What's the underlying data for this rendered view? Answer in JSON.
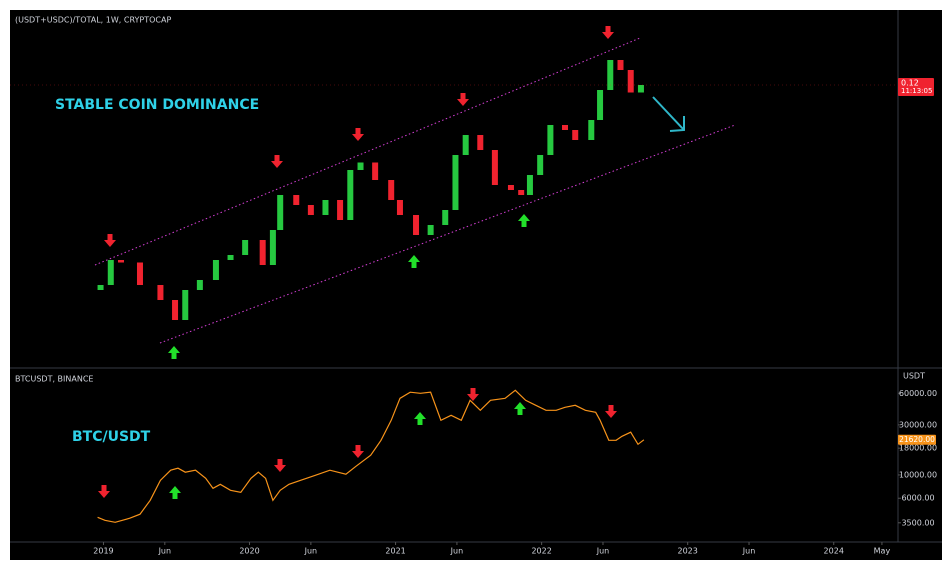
{
  "chart_data": [
    {
      "type": "candlestick",
      "title": "(USDT+USDC)/TOTAL, 1W, CRYPTOCAP",
      "annotation": "STABLE COIN DOMINANCE",
      "x": [
        2018.98,
        2019.05,
        2019.12,
        2019.25,
        2019.39,
        2019.49,
        2019.56,
        2019.66,
        2019.77,
        2019.87,
        2019.97,
        2020.09,
        2020.16,
        2020.21,
        2020.32,
        2020.42,
        2020.52,
        2020.62,
        2020.69,
        2020.76,
        2020.86,
        2020.97,
        2021.03,
        2021.14,
        2021.24,
        2021.34,
        2021.41,
        2021.48,
        2021.58,
        2021.68,
        2021.79,
        2021.86,
        2021.92,
        2021.99,
        2022.06,
        2022.16,
        2022.23,
        2022.34,
        2022.4,
        2022.47,
        2022.54,
        2022.61,
        2022.68
      ],
      "open": [
        0.038,
        0.04,
        0.05,
        0.049,
        0.04,
        0.034,
        0.026,
        0.038,
        0.042,
        0.05,
        0.052,
        0.058,
        0.048,
        0.062,
        0.076,
        0.072,
        0.068,
        0.074,
        0.066,
        0.086,
        0.089,
        0.082,
        0.074,
        0.068,
        0.06,
        0.064,
        0.07,
        0.092,
        0.1,
        0.094,
        0.08,
        0.078,
        0.076,
        0.084,
        0.092,
        0.104,
        0.102,
        0.098,
        0.106,
        0.118,
        0.13,
        0.126,
        0.117
      ],
      "close": [
        0.04,
        0.05,
        0.049,
        0.04,
        0.034,
        0.026,
        0.038,
        0.042,
        0.05,
        0.052,
        0.058,
        0.048,
        0.062,
        0.076,
        0.072,
        0.068,
        0.074,
        0.066,
        0.086,
        0.089,
        0.082,
        0.074,
        0.068,
        0.06,
        0.064,
        0.07,
        0.092,
        0.1,
        0.094,
        0.08,
        0.078,
        0.076,
        0.084,
        0.092,
        0.104,
        0.102,
        0.098,
        0.106,
        0.118,
        0.13,
        0.126,
        0.117,
        0.12
      ],
      "up_color": "#26c940",
      "down_color": "#f0232f",
      "xlim": [
        2018.36,
        2024.44
      ],
      "ylim": [
        0.008,
        0.15
      ],
      "last_price_label": "0.12",
      "countdown": "11:13:05"
    },
    {
      "type": "line",
      "title": "BTCUSDT, BINANCE",
      "annotation": "BTC/USDT",
      "unit": "USDT",
      "x": [
        2018.96,
        2019.01,
        2019.08,
        2019.18,
        2019.25,
        2019.32,
        2019.39,
        2019.46,
        2019.51,
        2019.56,
        2019.63,
        2019.7,
        2019.75,
        2019.8,
        2019.87,
        2019.94,
        2020.01,
        2020.06,
        2020.11,
        2020.16,
        2020.21,
        2020.27,
        2020.35,
        2020.45,
        2020.55,
        2020.66,
        2020.73,
        2020.83,
        2020.9,
        2020.97,
        2021.03,
        2021.1,
        2021.17,
        2021.24,
        2021.31,
        2021.38,
        2021.45,
        2021.51,
        2021.58,
        2021.65,
        2021.75,
        2021.82,
        2021.89,
        2021.96,
        2022.03,
        2022.1,
        2022.16,
        2022.23,
        2022.3,
        2022.37,
        2022.4,
        2022.46,
        2022.51,
        2022.55,
        2022.61,
        2022.66,
        2022.7
      ],
      "values": [
        3950,
        3700,
        3540,
        3870,
        4230,
        5740,
        8890,
        11090,
        11590,
        10620,
        11090,
        9290,
        7460,
        8150,
        7140,
        6840,
        9290,
        10620,
        9290,
        5740,
        7140,
        8150,
        8890,
        9930,
        11090,
        10160,
        12110,
        15420,
        21380,
        33190,
        53700,
        61380,
        60000,
        61380,
        33190,
        36980,
        33190,
        51400,
        41300,
        51400,
        53700,
        64120,
        51400,
        46130,
        41300,
        41300,
        44160,
        46130,
        41300,
        39540,
        33190,
        21380,
        21380,
        23330,
        25530,
        19590,
        21620
      ],
      "color": "#f7931a",
      "log_scale": true,
      "xlim": [
        2018.36,
        2024.44
      ],
      "ylim": [
        2400,
        100000
      ],
      "yticks": [
        {
          "value": 3500,
          "label": "3500.00"
        },
        {
          "value": 6000,
          "label": "6000.00"
        },
        {
          "value": 10000,
          "label": "10000.00"
        },
        {
          "value": 18000,
          "label": "18000.00"
        },
        {
          "value": 30000,
          "label": "30000.00"
        },
        {
          "value": 60000,
          "label": "60000.00"
        }
      ],
      "xticks": [
        {
          "value": 2019,
          "label": "2019"
        },
        {
          "value": 2019.42,
          "label": "Jun"
        },
        {
          "value": 2020,
          "label": "2020"
        },
        {
          "value": 2020.42,
          "label": "Jun"
        },
        {
          "value": 2021,
          "label": "2021"
        },
        {
          "value": 2021.42,
          "label": "Jun"
        },
        {
          "value": 2022,
          "label": "2022"
        },
        {
          "value": 2022.42,
          "label": "Jun"
        },
        {
          "value": 2023,
          "label": "2023"
        },
        {
          "value": 2023.42,
          "label": "Jun"
        },
        {
          "value": 2024,
          "label": "2024"
        },
        {
          "value": 2024.33,
          "label": "May"
        }
      ],
      "last_value_label": "21620.00"
    }
  ]
}
